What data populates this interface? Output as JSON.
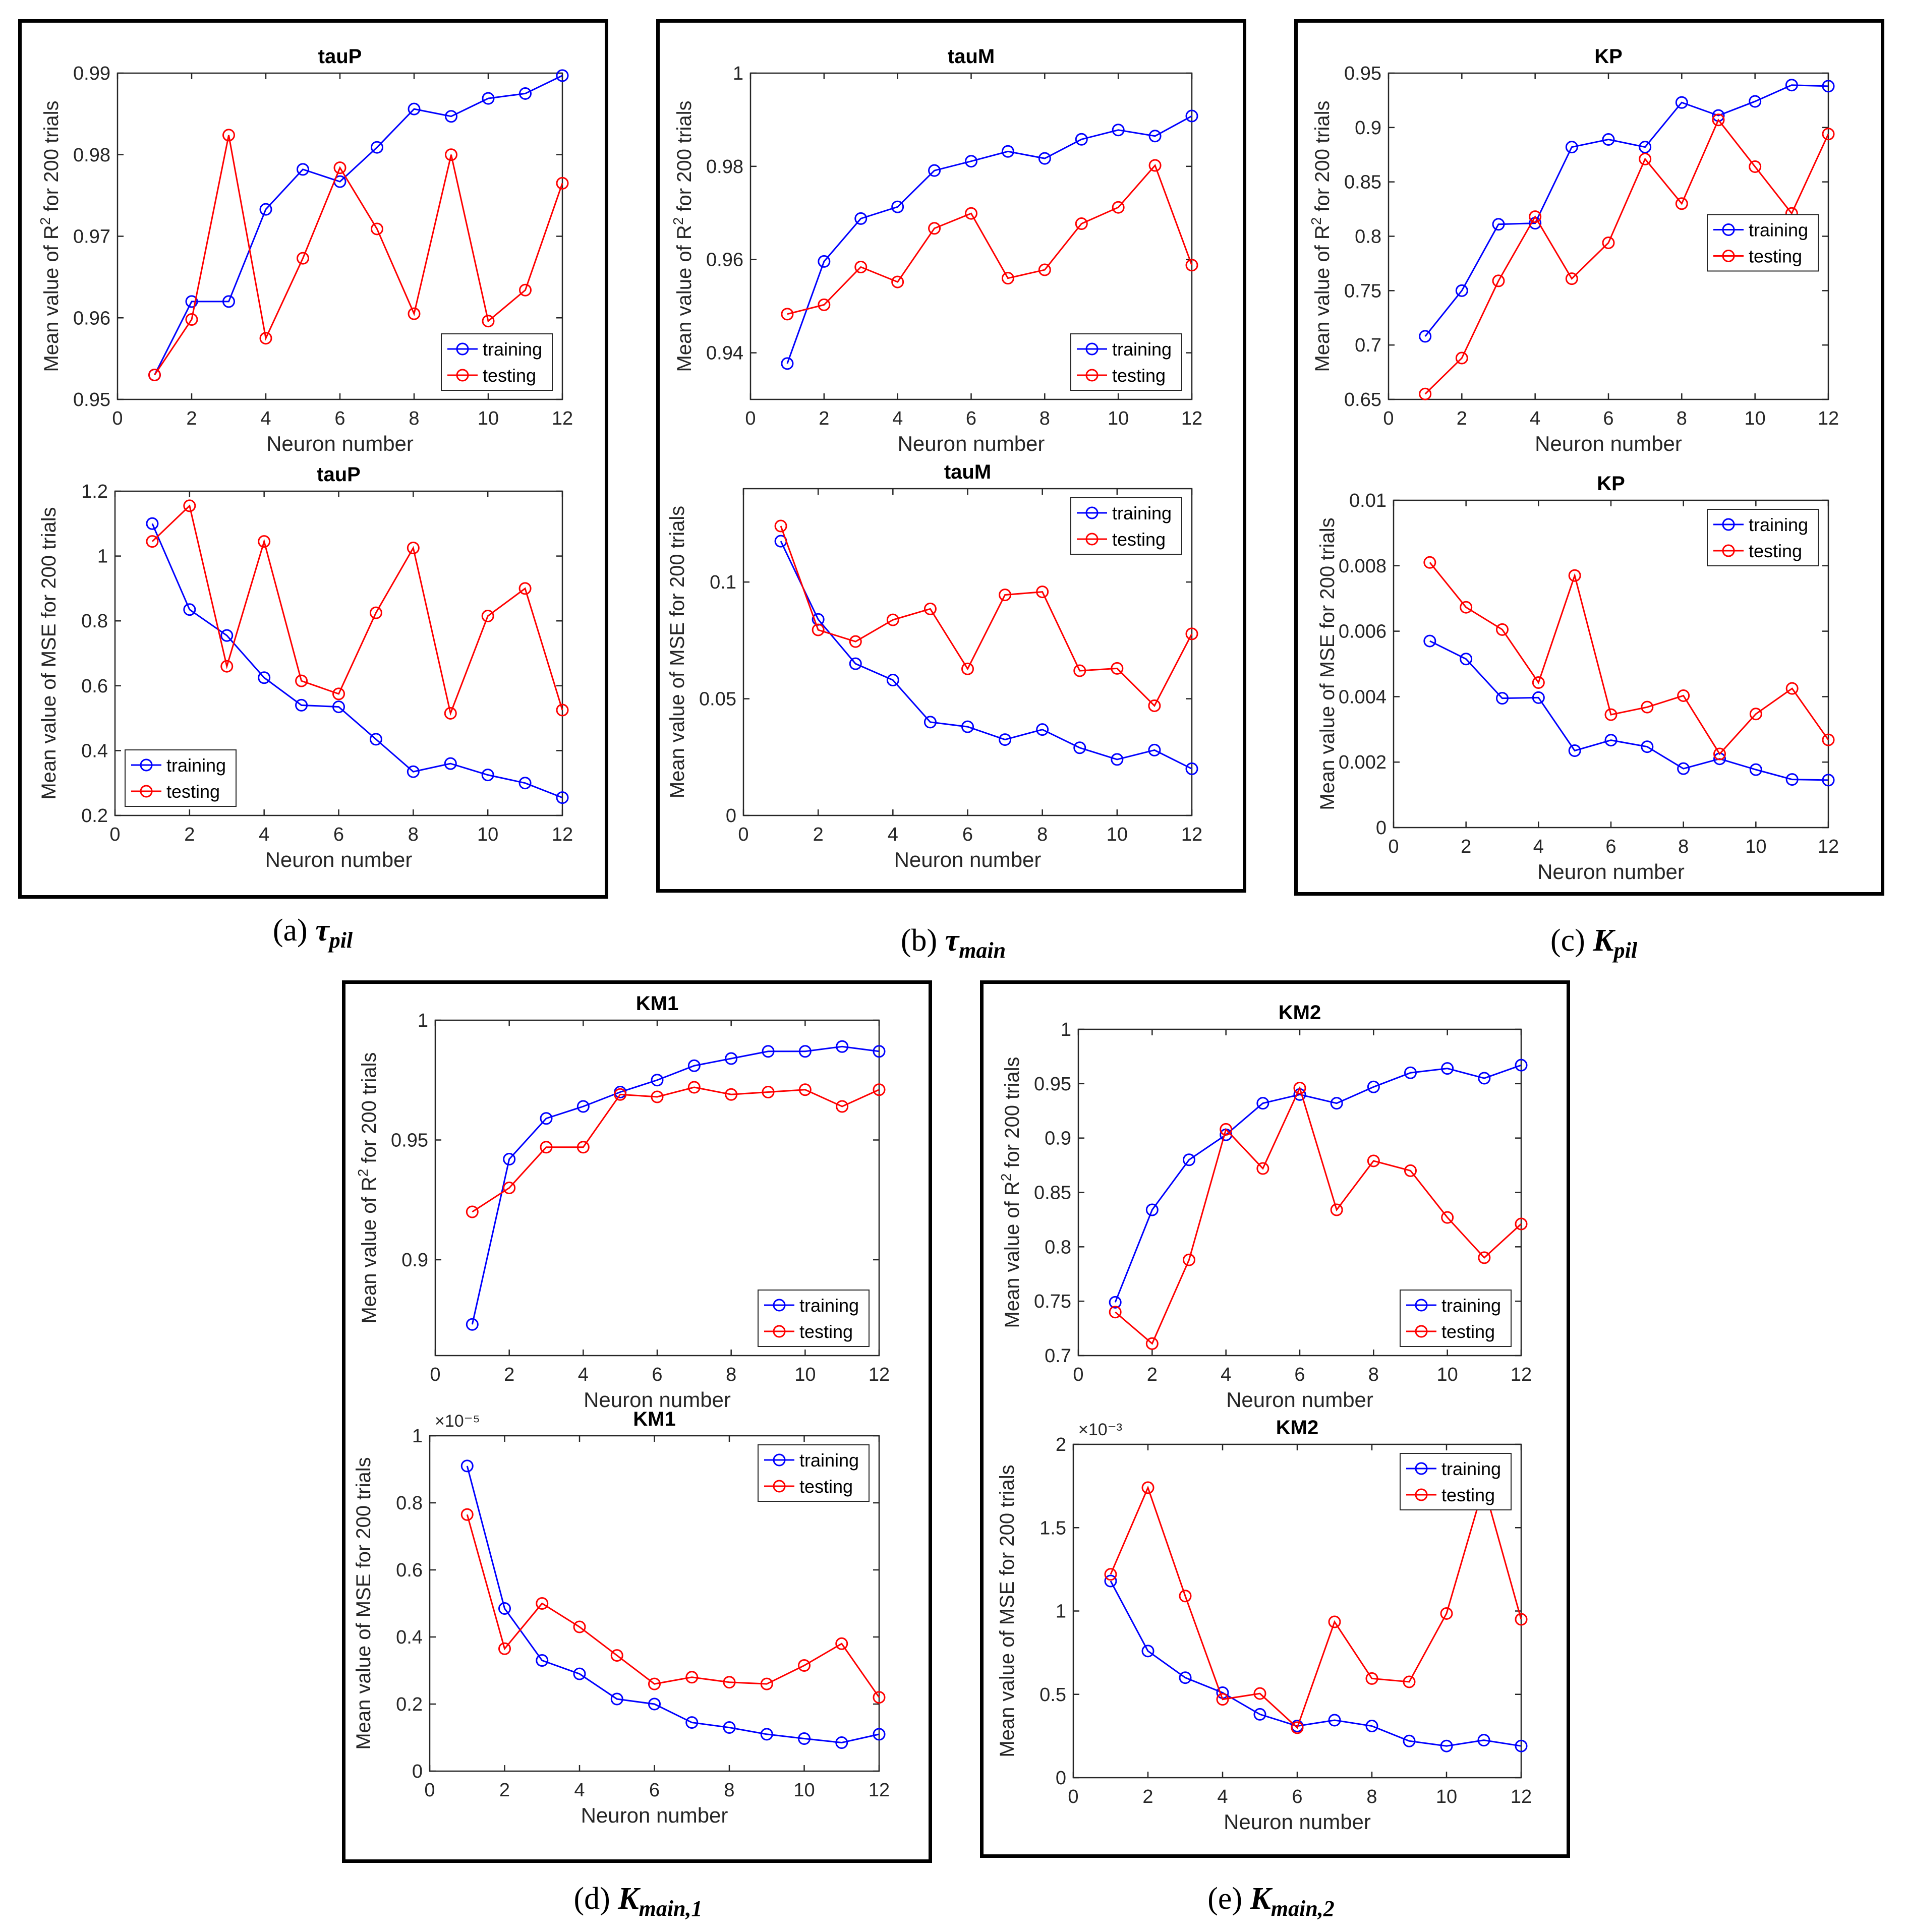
{
  "figure": {
    "colors": {
      "training": "#0000ff",
      "testing": "#ff0000",
      "axis": "#262626"
    },
    "xlabel": "Neuron number",
    "ylabel_r2_pre": "Mean value of R",
    "ylabel_r2_sup": "2",
    "ylabel_r2_post": " for 200 trials",
    "ylabel_mse": "Mean value of MSE for 200 trials",
    "legend": {
      "training": "training",
      "testing": "testing"
    }
  },
  "panels": [
    {
      "id": "a",
      "caption": {
        "prefix": "(a) ",
        "symbol": "τ",
        "sub": "pil"
      }
    },
    {
      "id": "b",
      "caption": {
        "prefix": "(b) ",
        "symbol": "τ",
        "sub": "main"
      }
    },
    {
      "id": "c",
      "caption": {
        "prefix": "(c) ",
        "symbol": "K",
        "sub": "pil"
      }
    },
    {
      "id": "d",
      "caption": {
        "prefix": "(d) ",
        "symbol": "K",
        "sub": "main,1"
      }
    },
    {
      "id": "e",
      "caption": {
        "prefix": "(e) ",
        "symbol": "K",
        "sub": "main,2"
      }
    }
  ],
  "chart_data": [
    {
      "panel": "a",
      "metric": "R2",
      "type": "line",
      "title": "tauP",
      "xlabel": "Neuron number",
      "ylabel": "Mean value of R^2 for 200 trials",
      "x": [
        1,
        2,
        3,
        4,
        5,
        6,
        7,
        8,
        9,
        10,
        11,
        12
      ],
      "xlim": [
        0,
        12
      ],
      "xticks": [
        0,
        2,
        4,
        6,
        8,
        10,
        12
      ],
      "ylim": [
        0.95,
        0.99
      ],
      "yticks": [
        0.95,
        0.96,
        0.97,
        0.98,
        0.99
      ],
      "ytick_labels": [
        "0.95",
        "0.96",
        "0.97",
        "0.98",
        "0.99"
      ],
      "exponent": "",
      "legend_position": "lower-right",
      "series": [
        {
          "name": "training",
          "values": [
            0.953,
            0.962,
            0.962,
            0.9733,
            0.9782,
            0.9767,
            0.9809,
            0.9856,
            0.9847,
            0.9869,
            0.9875,
            0.9897
          ]
        },
        {
          "name": "testing",
          "values": [
            0.953,
            0.9598,
            0.9824,
            0.9575,
            0.9673,
            0.9784,
            0.9709,
            0.9605,
            0.98,
            0.9596,
            0.9634,
            0.9765
          ]
        }
      ]
    },
    {
      "panel": "a",
      "metric": "MSE",
      "type": "line",
      "title": "tauP",
      "xlabel": "Neuron number",
      "ylabel": "Mean value of MSE for 200 trials",
      "x": [
        1,
        2,
        3,
        4,
        5,
        6,
        7,
        8,
        9,
        10,
        11,
        12
      ],
      "xlim": [
        0,
        12
      ],
      "xticks": [
        0,
        2,
        4,
        6,
        8,
        10,
        12
      ],
      "ylim": [
        0.2,
        1.2
      ],
      "yticks": [
        0.2,
        0.4,
        0.6,
        0.8,
        1.0,
        1.2
      ],
      "ytick_labels": [
        "0.2",
        "0.4",
        "0.6",
        "0.8",
        "1",
        "1.2"
      ],
      "exponent": "",
      "legend_position": "lower-left",
      "series": [
        {
          "name": "training",
          "values": [
            1.1,
            0.835,
            0.755,
            0.625,
            0.54,
            0.535,
            0.435,
            0.335,
            0.36,
            0.325,
            0.3,
            0.255
          ]
        },
        {
          "name": "testing",
          "values": [
            1.045,
            1.155,
            0.66,
            1.045,
            0.615,
            0.575,
            0.825,
            1.025,
            0.515,
            0.815,
            0.9,
            0.525
          ]
        }
      ]
    },
    {
      "panel": "b",
      "metric": "R2",
      "type": "line",
      "title": "tauM",
      "xlabel": "Neuron number",
      "ylabel": "Mean value of R^2 for 200 trials",
      "x": [
        1,
        2,
        3,
        4,
        5,
        6,
        7,
        8,
        9,
        10,
        11,
        12
      ],
      "xlim": [
        0,
        12
      ],
      "xticks": [
        0,
        2,
        4,
        6,
        8,
        10,
        12
      ],
      "ylim": [
        0.93,
        1.0
      ],
      "yticks": [
        0.94,
        0.96,
        0.98,
        1.0
      ],
      "ytick_labels": [
        "0.94",
        "0.96",
        "0.98",
        "1"
      ],
      "exponent": "",
      "legend_position": "lower-right",
      "series": [
        {
          "name": "training",
          "values": [
            0.9377,
            0.9596,
            0.9688,
            0.9713,
            0.9791,
            0.9811,
            0.9832,
            0.9817,
            0.9858,
            0.9878,
            0.9865,
            0.9908
          ]
        },
        {
          "name": "testing",
          "values": [
            0.9483,
            0.9503,
            0.9584,
            0.9552,
            0.9667,
            0.9699,
            0.956,
            0.9578,
            0.9677,
            0.9712,
            0.9802,
            0.9588
          ]
        }
      ]
    },
    {
      "panel": "b",
      "metric": "MSE",
      "type": "line",
      "title": "tauM",
      "xlabel": "Neuron number",
      "ylabel": "Mean value of MSE for 200 trials",
      "x": [
        1,
        2,
        3,
        4,
        5,
        6,
        7,
        8,
        9,
        10,
        11,
        12
      ],
      "xlim": [
        0,
        12
      ],
      "xticks": [
        0,
        2,
        4,
        6,
        8,
        10,
        12
      ],
      "ylim": [
        0,
        0.14
      ],
      "yticks": [
        0,
        0.05,
        0.1
      ],
      "ytick_labels": [
        "0",
        "0.05",
        "0.1"
      ],
      "exponent": "",
      "legend_position": "upper-right",
      "series": [
        {
          "name": "training",
          "values": [
            0.1175,
            0.084,
            0.065,
            0.058,
            0.04,
            0.038,
            0.0325,
            0.0368,
            0.029,
            0.024,
            0.028,
            0.02
          ]
        },
        {
          "name": "testing",
          "values": [
            0.124,
            0.0795,
            0.0745,
            0.0838,
            0.0885,
            0.0628,
            0.0945,
            0.0958,
            0.062,
            0.063,
            0.047,
            0.0778
          ]
        }
      ]
    },
    {
      "panel": "c",
      "metric": "R2",
      "type": "line",
      "title": "KP",
      "xlabel": "Neuron number",
      "ylabel": "Mean value of R^2 for 200 trials",
      "x": [
        1,
        2,
        3,
        4,
        5,
        6,
        7,
        8,
        9,
        10,
        11,
        12
      ],
      "xlim": [
        0,
        12
      ],
      "xticks": [
        0,
        2,
        4,
        6,
        8,
        10,
        12
      ],
      "ylim": [
        0.65,
        0.95
      ],
      "yticks": [
        0.65,
        0.7,
        0.75,
        0.8,
        0.85,
        0.9,
        0.95
      ],
      "ytick_labels": [
        "0.65",
        "0.7",
        "0.75",
        "0.8",
        "0.85",
        "0.9",
        "0.95"
      ],
      "exponent": "",
      "legend_position": "middle-right",
      "series": [
        {
          "name": "training",
          "values": [
            0.708,
            0.75,
            0.811,
            0.812,
            0.882,
            0.889,
            0.882,
            0.923,
            0.911,
            0.924,
            0.939,
            0.938
          ]
        },
        {
          "name": "testing",
          "values": [
            0.655,
            0.688,
            0.759,
            0.818,
            0.761,
            0.794,
            0.871,
            0.83,
            0.907,
            0.864,
            0.821,
            0.894
          ]
        }
      ]
    },
    {
      "panel": "c",
      "metric": "MSE",
      "type": "line",
      "title": "KP",
      "xlabel": "Neuron number",
      "ylabel": "Mean value of MSE for 200 trials",
      "x": [
        1,
        2,
        3,
        4,
        5,
        6,
        7,
        8,
        9,
        10,
        11,
        12
      ],
      "xlim": [
        0,
        12
      ],
      "xticks": [
        0,
        2,
        4,
        6,
        8,
        10,
        12
      ],
      "ylim": [
        0,
        0.01
      ],
      "yticks": [
        0,
        0.002,
        0.004,
        0.006,
        0.008,
        0.01
      ],
      "ytick_labels": [
        "0",
        "0.002",
        "0.004",
        "0.006",
        "0.008",
        "0.01"
      ],
      "exponent": "",
      "legend_position": "upper-right",
      "series": [
        {
          "name": "training",
          "values": [
            0.0057,
            0.00515,
            0.00395,
            0.00397,
            0.00235,
            0.00267,
            0.00247,
            0.0018,
            0.0021,
            0.00177,
            0.00147,
            0.00145
          ]
        },
        {
          "name": "testing",
          "values": [
            0.0081,
            0.00673,
            0.00605,
            0.00443,
            0.0077,
            0.00345,
            0.00368,
            0.00403,
            0.00225,
            0.00347,
            0.00425,
            0.00268
          ]
        }
      ]
    },
    {
      "panel": "d",
      "metric": "R2",
      "type": "line",
      "title": "KM1",
      "xlabel": "Neuron number",
      "ylabel": "Mean value of R^2 for 200 trials",
      "x": [
        1,
        2,
        3,
        4,
        5,
        6,
        7,
        8,
        9,
        10,
        11,
        12
      ],
      "xlim": [
        0,
        12
      ],
      "xticks": [
        0,
        2,
        4,
        6,
        8,
        10,
        12
      ],
      "ylim": [
        0.86,
        1.0
      ],
      "yticks": [
        0.9,
        0.95,
        1.0
      ],
      "ytick_labels": [
        "0.9",
        "0.95",
        "1"
      ],
      "exponent": "",
      "legend_position": "lower-right",
      "series": [
        {
          "name": "training",
          "values": [
            0.873,
            0.942,
            0.959,
            0.964,
            0.97,
            0.975,
            0.981,
            0.984,
            0.987,
            0.987,
            0.989,
            0.987
          ]
        },
        {
          "name": "testing",
          "values": [
            0.92,
            0.93,
            0.947,
            0.947,
            0.969,
            0.968,
            0.972,
            0.969,
            0.97,
            0.971,
            0.964,
            0.971
          ]
        }
      ]
    },
    {
      "panel": "d",
      "metric": "MSE",
      "type": "line",
      "title": "KM1",
      "xlabel": "Neuron number",
      "ylabel": "Mean value of MSE for 200 trials",
      "x": [
        1,
        2,
        3,
        4,
        5,
        6,
        7,
        8,
        9,
        10,
        11,
        12
      ],
      "xlim": [
        0,
        12
      ],
      "xticks": [
        0,
        2,
        4,
        6,
        8,
        10,
        12
      ],
      "ylim": [
        0,
        1.0
      ],
      "yticks": [
        0,
        0.2,
        0.4,
        0.6,
        0.8,
        1.0
      ],
      "ytick_labels": [
        "0",
        "0.2",
        "0.4",
        "0.6",
        "0.8",
        "1"
      ],
      "exponent": "×10⁻⁵",
      "legend_position": "upper-right",
      "series": [
        {
          "name": "training",
          "values": [
            0.91,
            0.485,
            0.33,
            0.29,
            0.215,
            0.2,
            0.145,
            0.13,
            0.11,
            0.097,
            0.085,
            0.11
          ]
        },
        {
          "name": "testing",
          "values": [
            0.765,
            0.365,
            0.5,
            0.43,
            0.345,
            0.26,
            0.28,
            0.265,
            0.26,
            0.315,
            0.38,
            0.22
          ]
        }
      ]
    },
    {
      "panel": "e",
      "metric": "R2",
      "type": "line",
      "title": "KM2",
      "xlabel": "Neuron number",
      "ylabel": "Mean value of R^2 for 200 trials",
      "x": [
        1,
        2,
        3,
        4,
        5,
        6,
        7,
        8,
        9,
        10,
        11,
        12
      ],
      "xlim": [
        0,
        12
      ],
      "xticks": [
        0,
        2,
        4,
        6,
        8,
        10,
        12
      ],
      "ylim": [
        0.7,
        1.0
      ],
      "yticks": [
        0.7,
        0.75,
        0.8,
        0.85,
        0.9,
        0.95,
        1.0
      ],
      "ytick_labels": [
        "0.7",
        "0.75",
        "0.8",
        "0.85",
        "0.9",
        "0.95",
        "1"
      ],
      "exponent": "",
      "legend_position": "lower-right",
      "series": [
        {
          "name": "training",
          "values": [
            0.749,
            0.834,
            0.88,
            0.903,
            0.932,
            0.94,
            0.932,
            0.947,
            0.96,
            0.964,
            0.955,
            0.967
          ]
        },
        {
          "name": "testing",
          "values": [
            0.74,
            0.711,
            0.788,
            0.908,
            0.872,
            0.946,
            0.834,
            0.879,
            0.87,
            0.827,
            0.79,
            0.821
          ]
        }
      ]
    },
    {
      "panel": "e",
      "metric": "MSE",
      "type": "line",
      "title": "KM2",
      "xlabel": "Neuron number",
      "ylabel": "Mean value of MSE for 200 trials",
      "x": [
        1,
        2,
        3,
        4,
        5,
        6,
        7,
        8,
        9,
        10,
        11,
        12
      ],
      "xlim": [
        0,
        12
      ],
      "xticks": [
        0,
        2,
        4,
        6,
        8,
        10,
        12
      ],
      "ylim": [
        0,
        2.0
      ],
      "yticks": [
        0,
        0.5,
        1.0,
        1.5,
        2.0
      ],
      "ytick_labels": [
        "0",
        "0.5",
        "1",
        "1.5",
        "2"
      ],
      "exponent": "×10⁻³",
      "legend_position": "upper-right",
      "series": [
        {
          "name": "training",
          "values": [
            1.18,
            0.76,
            0.6,
            0.51,
            0.38,
            0.31,
            0.345,
            0.31,
            0.22,
            0.19,
            0.225,
            0.19
          ]
        },
        {
          "name": "testing",
          "values": [
            1.22,
            1.74,
            1.09,
            0.47,
            0.505,
            0.3,
            0.935,
            0.595,
            0.575,
            0.985,
            1.75,
            0.95
          ]
        }
      ]
    }
  ]
}
